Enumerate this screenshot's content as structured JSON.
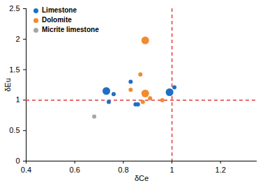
{
  "chart_data": {
    "type": "scatter",
    "x_label": "δCe",
    "y_label": "δEu",
    "xlim": [
      0.4,
      1.35
    ],
    "xticks": [
      0.4,
      0.6,
      0.8,
      1,
      1.2
    ],
    "ylim": [
      0,
      2.5
    ],
    "yticks": [
      0,
      0.5,
      1,
      1.5,
      2,
      2.5
    ],
    "legend": "top-left",
    "reference_lines": {
      "x": [
        1
      ],
      "y": [
        1
      ],
      "color": "#e8393a",
      "line_style": "dashed"
    },
    "series": [
      {
        "name": "Limestone",
        "color": "#1f6fc5",
        "marker": "circle",
        "x": [
          0.73,
          0.74,
          0.76,
          0.83,
          0.85,
          0.86,
          0.99,
          1.01
        ],
        "values": [
          1.15,
          0.97,
          1.1,
          1.3,
          0.93,
          0.93,
          1.13,
          1.21
        ],
        "sizes": [
          2,
          1,
          1,
          1,
          1,
          1,
          2,
          1
        ]
      },
      {
        "name": "Dolomite",
        "color": "#f28a2e",
        "marker": "circle",
        "x": [
          0.89,
          0.89,
          0.83,
          0.87,
          0.88,
          0.91,
          0.96
        ],
        "values": [
          1.98,
          1.11,
          1.17,
          1.42,
          0.97,
          1.03,
          1.0
        ],
        "sizes": [
          2,
          2,
          1,
          1,
          1,
          1,
          1
        ]
      },
      {
        "name": "Micrite limestone",
        "color": "#a6a6a6",
        "marker": "circle",
        "x": [
          0.68
        ],
        "values": [
          0.73
        ],
        "sizes": [
          1
        ]
      }
    ]
  }
}
